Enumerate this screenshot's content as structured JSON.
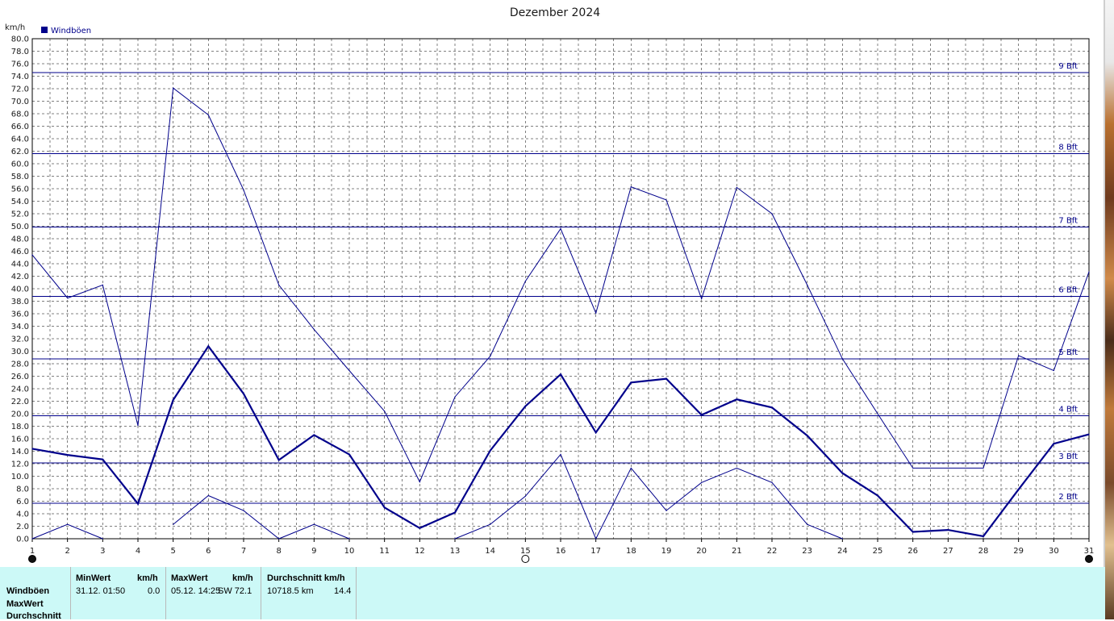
{
  "chart_data": {
    "type": "line",
    "title": "Dezember 2024",
    "ylabel": "km/h",
    "ylim": [
      0,
      80
    ],
    "y_tick_step": 2,
    "x": [
      1,
      2,
      3,
      4,
      5,
      6,
      7,
      8,
      9,
      10,
      11,
      12,
      13,
      14,
      15,
      16,
      17,
      18,
      19,
      20,
      21,
      22,
      23,
      24,
      25,
      26,
      27,
      28,
      29,
      30,
      31
    ],
    "legend": [
      "Windböen"
    ],
    "grid": true,
    "series": [
      {
        "role": "max",
        "color": "#00008b",
        "values": [
          45.4,
          38.5,
          40.6,
          18.1,
          72.1,
          67.8,
          55.8,
          40.6,
          33.5,
          26.9,
          20.4,
          9.1,
          22.7,
          29.2,
          41.2,
          49.6,
          36.1,
          56.3,
          54.2,
          38.4,
          56.2,
          52.0,
          40.6,
          28.8,
          20.0,
          11.3,
          11.3,
          11.3,
          29.3,
          26.9,
          42.7
        ]
      },
      {
        "role": "avg",
        "color": "#00008b",
        "values": [
          14.4,
          13.4,
          12.7,
          5.6,
          22.2,
          30.8,
          23.2,
          12.6,
          16.6,
          13.5,
          5.0,
          1.7,
          4.2,
          14.1,
          21.2,
          26.3,
          17.0,
          25.0,
          25.6,
          19.8,
          22.3,
          21.0,
          16.5,
          10.5,
          6.9,
          1.1,
          1.4,
          0.4,
          7.9,
          15.2,
          16.7
        ]
      },
      {
        "role": "min",
        "color": "#00008b",
        "values": [
          0.0,
          2.3,
          0.0,
          null,
          2.3,
          6.9,
          4.5,
          0.0,
          2.3,
          0.0,
          null,
          null,
          0.0,
          2.3,
          6.8,
          13.5,
          0.0,
          11.3,
          4.5,
          9.0,
          11.3,
          9.0,
          2.3,
          0.0,
          null,
          null,
          null,
          null,
          null,
          null,
          null
        ]
      }
    ],
    "beaufort_lines": [
      {
        "label": "9 Bft",
        "value": 74.6
      },
      {
        "label": "8 Bft",
        "value": 61.6
      },
      {
        "label": "7 Bft",
        "value": 49.9
      },
      {
        "label": "6 Bft",
        "value": 38.8
      },
      {
        "label": "5 Bft",
        "value": 28.8
      },
      {
        "label": "4 Bft",
        "value": 19.7
      },
      {
        "label": "3 Bft",
        "value": 12.1
      },
      {
        "label": "2 Bft",
        "value": 5.7
      }
    ],
    "moon_markers": [
      {
        "day": 1,
        "phase": "new-moon"
      },
      {
        "day": 15,
        "phase": "full-moon"
      },
      {
        "day": 31,
        "phase": "new-moon"
      }
    ]
  },
  "stats": {
    "headers": {
      "min": "MinWert",
      "min_unit": "km/h",
      "max": "MaxWert",
      "max_unit": "km/h",
      "avg": "Durchschnitt km/h"
    },
    "row_labels": [
      "Windböen",
      "MaxWert",
      "Durchschnitt"
    ],
    "min_time": "31.12.  01:50",
    "min_value": "0.0",
    "max_time": "05.12.  14:25",
    "max_value": "SW 72.1",
    "avg_distance": "10718.5 km",
    "avg_value": "14.4"
  }
}
